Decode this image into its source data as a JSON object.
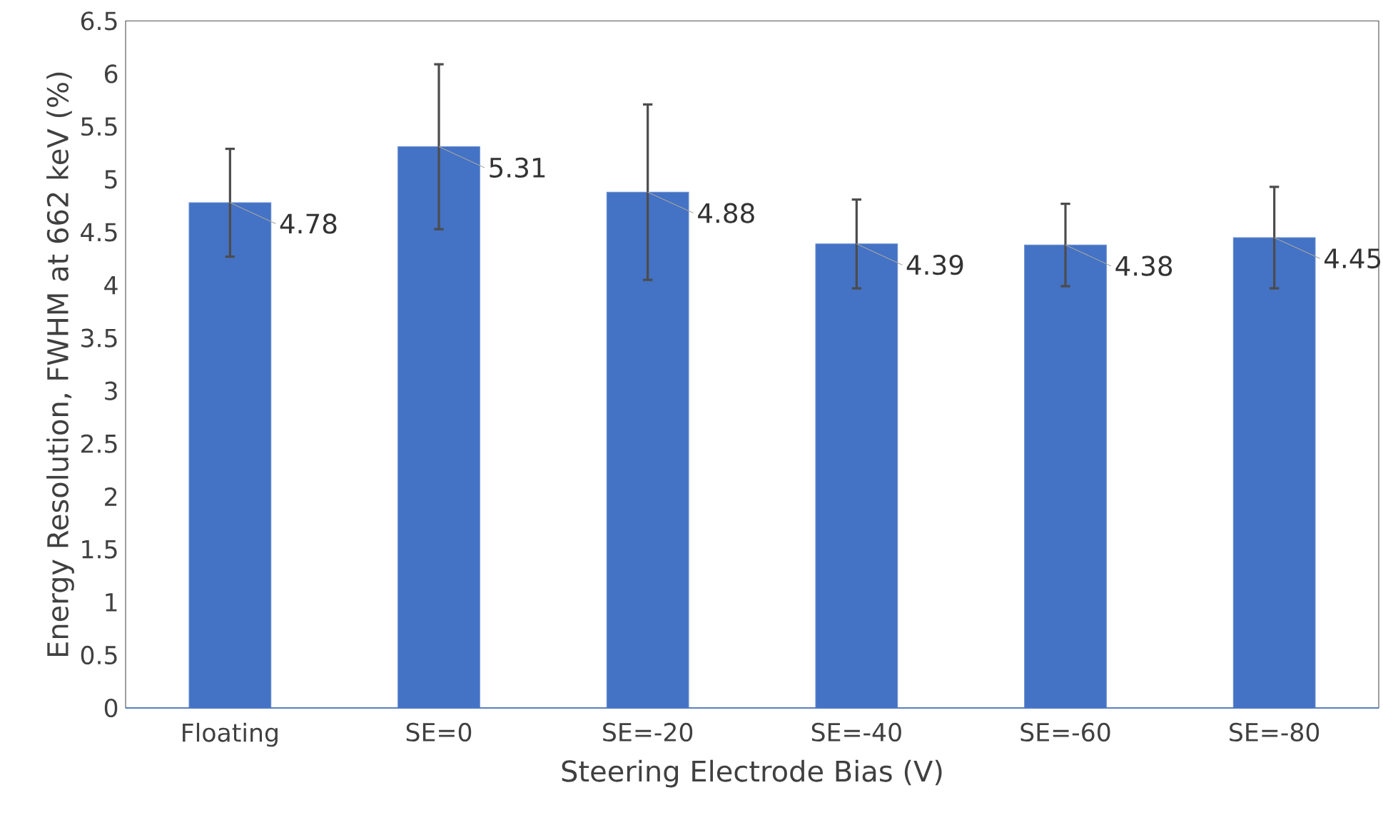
{
  "chart_data": {
    "type": "bar",
    "xlabel": "Steering Electrode Bias (V)",
    "ylabel": "Energy Resolution, FWHM at 662 keV (%)",
    "categories": [
      "Floating",
      "SE=0",
      "SE=-20",
      "SE=-40",
      "SE=-60",
      "SE=-80"
    ],
    "values": [
      4.78,
      5.31,
      4.88,
      4.39,
      4.38,
      4.45
    ],
    "errors": [
      0.51,
      0.78,
      0.83,
      0.42,
      0.39,
      0.48
    ],
    "color": "#4472c4",
    "ylim": [
      0,
      6.5
    ],
    "yticks": [
      0,
      0.5,
      1,
      1.5,
      2,
      2.5,
      3,
      3.5,
      4,
      4.5,
      5,
      5.5,
      6,
      6.5
    ],
    "grid": false,
    "data_labels": true
  }
}
